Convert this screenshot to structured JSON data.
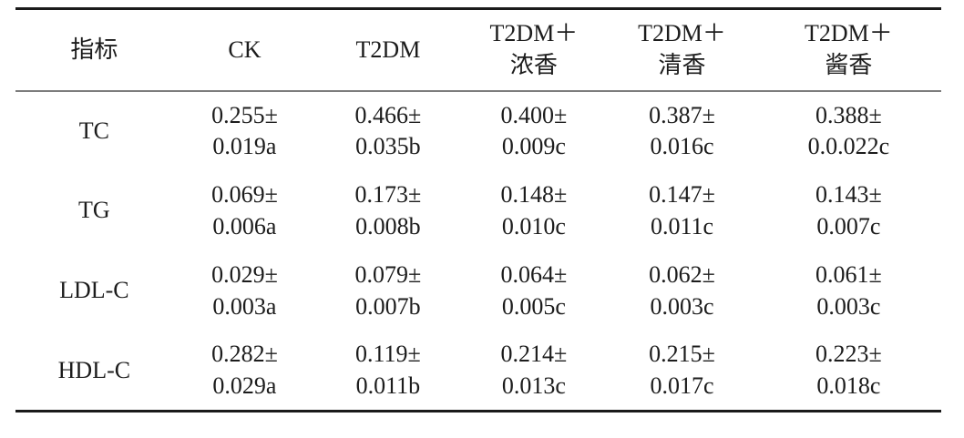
{
  "colors": {
    "rule_dark": "#1a1a1a",
    "rule_gray": "#7d7d7d",
    "text": "#1c1c1c",
    "background": "#ffffff"
  },
  "table": {
    "headers": [
      {
        "line1": "指标",
        "line2": ""
      },
      {
        "line1": "CK",
        "line2": ""
      },
      {
        "line1": "T2DM",
        "line2": ""
      },
      {
        "line1": "T2DM＋",
        "line2": "浓香"
      },
      {
        "line1": "T2DM＋",
        "line2": "清香"
      },
      {
        "line1": "T2DM＋",
        "line2": "酱香"
      }
    ],
    "rows": [
      {
        "label": "TC",
        "cells": [
          {
            "line1": "0.255±",
            "line2": "0.019a"
          },
          {
            "line1": "0.466±",
            "line2": "0.035b"
          },
          {
            "line1": "0.400±",
            "line2": "0.009c"
          },
          {
            "line1": "0.387±",
            "line2": "0.016c"
          },
          {
            "line1": "0.388±",
            "line2": "0.0.022c"
          }
        ]
      },
      {
        "label": "TG",
        "cells": [
          {
            "line1": "0.069±",
            "line2": "0.006a"
          },
          {
            "line1": "0.173±",
            "line2": "0.008b"
          },
          {
            "line1": "0.148±",
            "line2": "0.010c"
          },
          {
            "line1": "0.147±",
            "line2": "0.011c"
          },
          {
            "line1": "0.143±",
            "line2": "0.007c"
          }
        ]
      },
      {
        "label": "LDL-C",
        "cells": [
          {
            "line1": "0.029±",
            "line2": "0.003a"
          },
          {
            "line1": "0.079±",
            "line2": "0.007b"
          },
          {
            "line1": "0.064±",
            "line2": "0.005c"
          },
          {
            "line1": "0.062±",
            "line2": "0.003c"
          },
          {
            "line1": "0.061±",
            "line2": "0.003c"
          }
        ]
      },
      {
        "label": "HDL-C",
        "cells": [
          {
            "line1": "0.282±",
            "line2": "0.029a"
          },
          {
            "line1": "0.119±",
            "line2": "0.011b"
          },
          {
            "line1": "0.214±",
            "line2": "0.013c"
          },
          {
            "line1": "0.215±",
            "line2": "0.017c"
          },
          {
            "line1": "0.223±",
            "line2": "0.018c"
          }
        ]
      }
    ]
  }
}
